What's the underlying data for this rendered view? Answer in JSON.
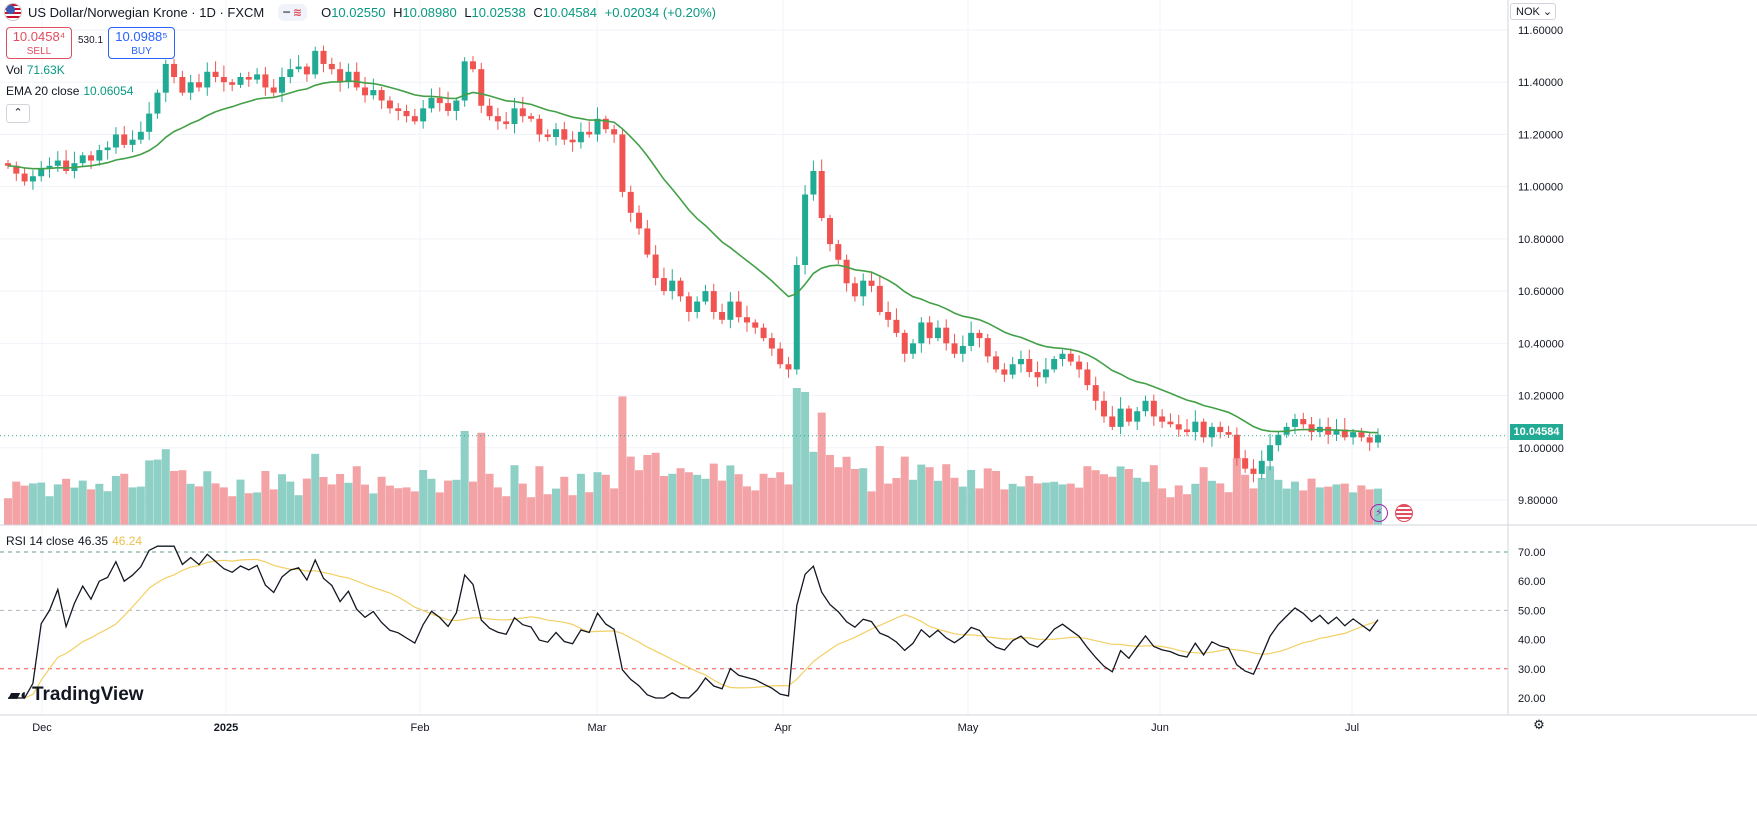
{
  "header": {
    "title": "US Dollar/Norwegian Krone · 1D · FXCM",
    "open_label": "O",
    "open": "10.02550",
    "high_label": "H",
    "high": "10.08980",
    "low_label": "L",
    "low": "10.02538",
    "close_label": "C",
    "close": "10.04584",
    "change": "+0.02034 (+0.20%)"
  },
  "trade": {
    "sell_price": "10.0458⁴",
    "sell_label": "SELL",
    "buy_price": "10.0988⁵",
    "buy_label": "BUY",
    "spread": "530.1"
  },
  "legend": {
    "vol_label": "Vol",
    "vol_value": "71.63K",
    "ema_label": "EMA 20 close",
    "ema_value": "10.06054",
    "rsi_label": "RSI 14 close",
    "rsi_value": "46.35",
    "rsi_ma_value": "46.24"
  },
  "currency_button": "NOK ⌄",
  "brand": "TradingView",
  "colors": {
    "up": "#22ab94",
    "down": "#f05350",
    "ema": "#43a047",
    "rsi": "#131722",
    "rsi_ma": "#f2d064",
    "vol_up": "#8fd0c6",
    "vol_down": "#f3a3a5"
  },
  "chart_data": {
    "type": "candlestick",
    "price_axis_ticks": [
      "11.60000",
      "11.40000",
      "11.20000",
      "11.00000",
      "10.80000",
      "10.60000",
      "10.40000",
      "10.20000",
      "10.00000",
      "9.80000"
    ],
    "current_price": "10.04584",
    "time_axis": [
      "Dec",
      "2025",
      "Feb",
      "Mar",
      "Apr",
      "May",
      "Jun",
      "Jul"
    ],
    "rsi_axis_ticks": [
      "70.00",
      "60.00",
      "50.00",
      "40.00",
      "30.00",
      "20.00"
    ],
    "rsi_bands": [
      70,
      50,
      30
    ],
    "closes": [
      11.08,
      11.05,
      11.02,
      11.04,
      11.07,
      11.08,
      11.1,
      11.06,
      11.09,
      11.12,
      11.1,
      11.14,
      11.15,
      11.2,
      11.16,
      11.18,
      11.21,
      11.28,
      11.36,
      11.47,
      11.42,
      11.36,
      11.4,
      11.38,
      11.44,
      11.42,
      11.4,
      11.39,
      11.42,
      11.41,
      11.43,
      11.38,
      11.36,
      11.42,
      11.45,
      11.46,
      11.43,
      11.52,
      11.47,
      11.45,
      11.4,
      11.44,
      11.38,
      11.35,
      11.37,
      11.33,
      11.3,
      11.29,
      11.27,
      11.25,
      11.3,
      11.34,
      11.32,
      11.29,
      11.33,
      11.48,
      11.45,
      11.31,
      11.27,
      11.25,
      11.24,
      11.3,
      11.27,
      11.26,
      11.2,
      11.19,
      11.22,
      11.18,
      11.17,
      11.21,
      11.2,
      11.26,
      11.22,
      11.2,
      10.98,
      10.9,
      10.84,
      10.74,
      10.65,
      10.6,
      10.64,
      10.58,
      10.52,
      10.56,
      10.6,
      10.52,
      10.49,
      10.56,
      10.5,
      10.48,
      10.46,
      10.42,
      10.38,
      10.32,
      10.3,
      10.7,
      10.97,
      11.06,
      10.88,
      10.78,
      10.72,
      10.63,
      10.58,
      10.64,
      10.62,
      10.52,
      10.49,
      10.44,
      10.36,
      10.4,
      10.48,
      10.42,
      10.46,
      10.4,
      10.36,
      10.39,
      10.44,
      10.42,
      10.35,
      10.3,
      10.28,
      10.32,
      10.34,
      10.29,
      10.27,
      10.3,
      10.34,
      10.36,
      10.33,
      10.3,
      10.24,
      10.18,
      10.12,
      10.08,
      10.15,
      10.1,
      10.14,
      10.18,
      10.12,
      10.1,
      10.09,
      10.07,
      10.06,
      10.1,
      10.04,
      10.08,
      10.06,
      10.05,
      9.96,
      9.92,
      9.9,
      9.95,
      10.01,
      10.05,
      10.08,
      10.11,
      10.09,
      10.06,
      10.08,
      10.05,
      10.07,
      10.04,
      10.06,
      10.04,
      10.02,
      10.05
    ],
    "ema_last": 10.06054,
    "rsi_last": 46.35,
    "rsi_ma_last": 46.24
  }
}
